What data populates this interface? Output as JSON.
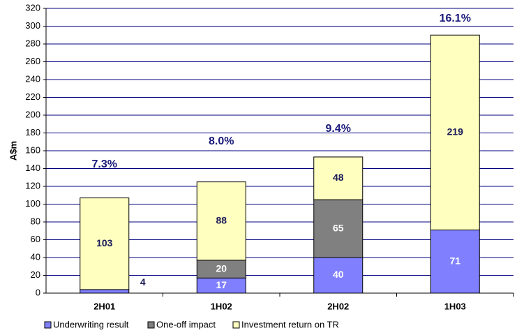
{
  "chart_data": {
    "type": "stacked_bar",
    "y_label": "A$m",
    "categories": [
      "2H01",
      "1H02",
      "2H02",
      "1H03"
    ],
    "series": [
      {
        "name": "Underwriting result",
        "color": "#8080ff",
        "values": [
          4,
          17,
          40,
          71
        ]
      },
      {
        "name": "One-off impact",
        "color": "#808080",
        "values": [
          null,
          20,
          65,
          null
        ]
      },
      {
        "name": "Investment return on TR",
        "color": "#ffffc0",
        "values": [
          103,
          88,
          48,
          219
        ]
      }
    ],
    "annotations": [
      "7.3%",
      "8.0%",
      "9.4%",
      "16.1%"
    ],
    "ylim": [
      0,
      320
    ],
    "yticks": [
      0,
      20,
      40,
      60,
      80,
      100,
      120,
      140,
      160,
      180,
      200,
      220,
      240,
      260,
      280,
      300,
      320
    ],
    "grid": true,
    "legend": "bottom"
  }
}
